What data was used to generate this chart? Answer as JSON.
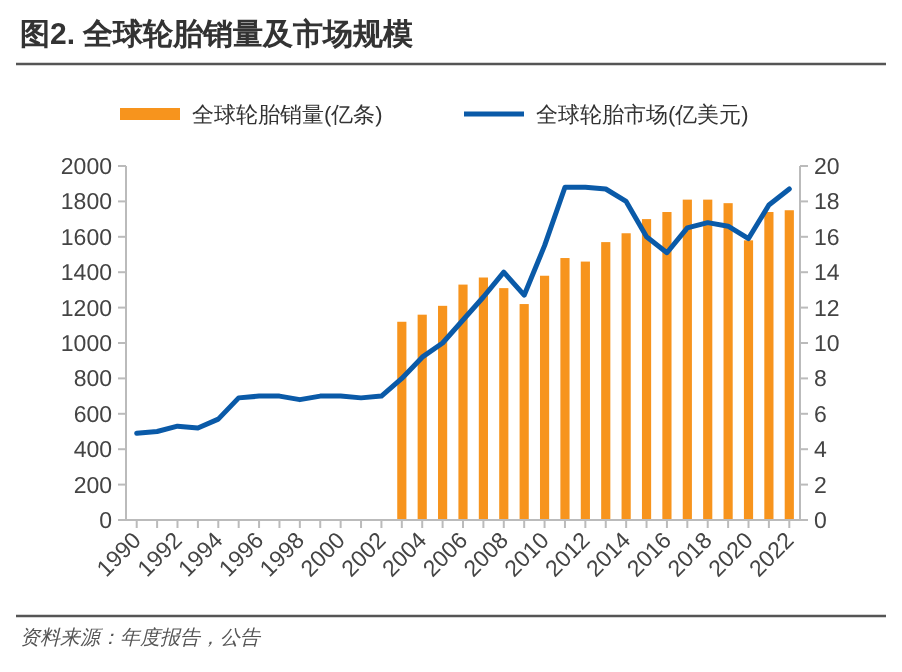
{
  "chart_data": {
    "type": "bar",
    "title": "图2. 全球轮胎销量及市场规模",
    "annotations": [
      "资料来源：年度报告，公告"
    ],
    "categories": [
      "1990",
      null,
      "1992",
      null,
      "1994",
      null,
      "1996",
      null,
      "1998",
      null,
      "2000",
      null,
      "2002",
      null,
      "2004",
      null,
      "2006",
      null,
      "2008",
      null,
      "2010",
      null,
      "2012",
      null,
      "2014",
      null,
      "2016",
      null,
      "2018",
      null,
      "2020",
      null,
      "2022"
    ],
    "series": [
      {
        "name": "全球轮胎销量(亿条)",
        "color": "#f7941d",
        "values": [
          null,
          null,
          null,
          null,
          null,
          null,
          null,
          null,
          null,
          null,
          null,
          null,
          null,
          1120,
          1160,
          1210,
          1330,
          1370,
          1310,
          1220,
          1380,
          1480,
          1460,
          1570,
          1620,
          1700,
          1740,
          1810,
          1810,
          1790,
          1580,
          1740,
          1750
        ]
      },
      {
        "name": "全球轮胎市场(亿美元)",
        "type": "line",
        "axis": "y2",
        "color": "#0a5aa8",
        "values": [
          4.9,
          5.0,
          5.3,
          5.2,
          5.7,
          6.9,
          7.0,
          7.0,
          6.8,
          7.0,
          7.0,
          6.9,
          7.0,
          8.0,
          9.2,
          10.0,
          11.3,
          12.6,
          14.0,
          12.7,
          15.5,
          18.8,
          18.8,
          18.7,
          18.0,
          16.0,
          15.1,
          16.5,
          16.8,
          16.6,
          15.9,
          17.8,
          18.7
        ]
      }
    ],
    "ylim": [
      0,
      2000
    ],
    "yticks": [
      0,
      200,
      400,
      600,
      800,
      1000,
      1200,
      1400,
      1600,
      1800,
      2000
    ],
    "y2lim": [
      0,
      20
    ],
    "y2ticks": [
      0,
      2,
      4,
      6,
      8,
      10,
      12,
      14,
      16,
      18,
      20
    ],
    "grid": false,
    "legend": "top",
    "marker": "none",
    "line_style": "solid"
  }
}
